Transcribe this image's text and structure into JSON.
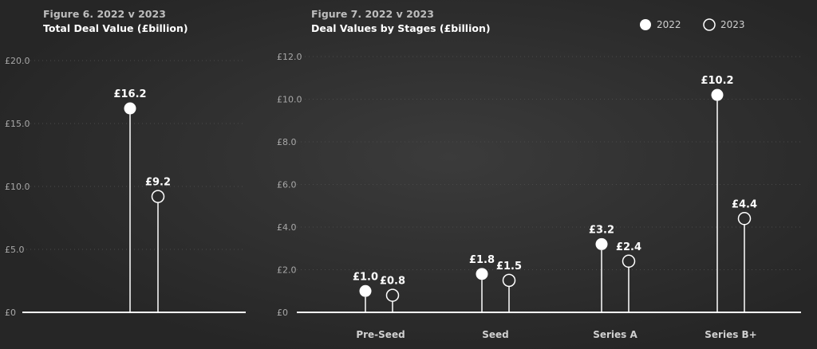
{
  "colors": {
    "background": "#2a2a2a",
    "mark": "#ffffff"
  },
  "legend": {
    "placement": "top-right",
    "items": [
      {
        "label": "2022",
        "style": "filled"
      },
      {
        "label": "2023",
        "style": "hollow"
      }
    ]
  },
  "chart_data": [
    {
      "type": "lollipop",
      "title": "Figure 6. 2022 v 2023",
      "subtitle": "Total Deal Value (£billion)",
      "ylim": [
        0,
        20
      ],
      "yticks": [
        0,
        5,
        10,
        15,
        20
      ],
      "ytick_labels": [
        "£0",
        "£5.0",
        "£10.0",
        "£15.0",
        "£20.0"
      ],
      "categories": [
        ""
      ],
      "series": [
        {
          "name": "2022",
          "style": "filled",
          "values": [
            16.2
          ],
          "labels": [
            "£16.2"
          ]
        },
        {
          "name": "2023",
          "style": "hollow",
          "values": [
            9.2
          ],
          "labels": [
            "£9.2"
          ]
        }
      ]
    },
    {
      "type": "lollipop",
      "title": "Figure 7. 2022 v 2023",
      "subtitle": "Deal Values by Stages (£billion)",
      "ylim": [
        0,
        12
      ],
      "yticks": [
        0,
        2,
        4,
        6,
        8,
        10,
        12
      ],
      "ytick_labels": [
        "£0",
        "£2.0",
        "£4.0",
        "£6.0",
        "£8.0",
        "£10.0",
        "£12.0"
      ],
      "categories": [
        "Pre-Seed",
        "Seed",
        "Series A",
        "Series B+"
      ],
      "series": [
        {
          "name": "2022",
          "style": "filled",
          "values": [
            1.0,
            1.8,
            3.2,
            10.2
          ],
          "labels": [
            "£1.0",
            "£1.8",
            "£3.2",
            "£10.2"
          ]
        },
        {
          "name": "2023",
          "style": "hollow",
          "values": [
            0.8,
            1.5,
            2.4,
            4.4
          ],
          "labels": [
            "£0.8",
            "£1.5",
            "£2.4",
            "£4.4"
          ]
        }
      ]
    }
  ]
}
